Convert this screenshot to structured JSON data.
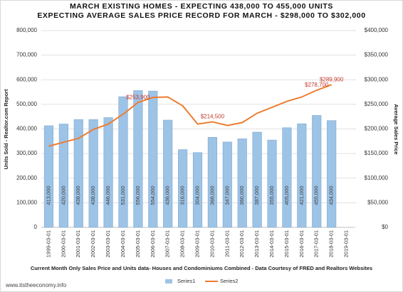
{
  "chart_data": {
    "type": "bar-line",
    "title": "MARCH EXISTING HOMES - EXPECTING 438,000 TO 455,000 UNITS",
    "subtitle": "EXPECTING AVERAGE SALES PRICE RECORD FOR MARCH - $298,000 TO $302,000",
    "y_label": "Units Sold - Realtor.com Report",
    "y2_label": "Average Sales Price",
    "note": "Current Month Only Sales Price and Units data- Houses and Condominiums Combined - Data Courtesy of FRED and Realtors Websites",
    "watermark": "www.itstheeconomy.info",
    "categories": [
      "1999-03-01",
      "2000-03-01",
      "2001-03-01",
      "2002-03-01",
      "2003-03-01",
      "2004-03-01",
      "2005-03-01",
      "2006-03-01",
      "2007-03-01",
      "2008-03-01",
      "2009-03-01",
      "2010-03-01",
      "2011-03-01",
      "2012-03-01",
      "2013-03-01",
      "2014-03-01",
      "2015-03-01",
      "2016-03-01",
      "2017-03-01",
      "2018-03-01",
      "2019-03-01"
    ],
    "series": [
      {
        "name": "Series1",
        "type": "bar",
        "color": "#9dc3e6",
        "values": [
          413000,
          420000,
          438000,
          438000,
          446000,
          531000,
          556000,
          554000,
          436000,
          316000,
          304000,
          366000,
          347000,
          360000,
          387000,
          355000,
          405000,
          421000,
          455000,
          434000,
          null
        ],
        "value_labels": [
          "413,000",
          "420,000",
          "438,000",
          "438,000",
          "446,000",
          "531,000",
          "556,000",
          "554,000",
          "436,000",
          "316,000",
          "304,000",
          "366,000",
          "347,000",
          "360,000",
          "387,000",
          "355,000",
          "405,000",
          "421,000",
          "455,000",
          "434,000",
          null
        ]
      },
      {
        "name": "Series2",
        "type": "line",
        "axis": "y2",
        "color": "#ed7d31",
        "values": [
          165000,
          173000,
          181000,
          199000,
          210000,
          230000,
          253900,
          264000,
          265000,
          247000,
          210000,
          214500,
          207000,
          213000,
          232000,
          244000,
          256000,
          265000,
          278700,
          289900,
          null
        ],
        "value_labels": [
          null,
          null,
          null,
          null,
          null,
          null,
          "$253,900",
          null,
          null,
          null,
          null,
          "$214,500",
          null,
          null,
          null,
          null,
          null,
          null,
          "$278,700",
          "$289,900",
          null
        ]
      }
    ],
    "ylim": [
      0,
      800000
    ],
    "yticks": [
      0,
      {
        "value": 100000,
        "label": "100,000"
      },
      {
        "value": 200000,
        "label": "200,000"
      },
      {
        "value": 300000,
        "label": "300,000"
      },
      {
        "value": 400000,
        "label": "400,000"
      },
      {
        "value": 500000,
        "label": "500,000"
      },
      {
        "value": 600000,
        "label": "600,000"
      },
      {
        "value": 700000,
        "label": "700,000"
      },
      {
        "value": 800000,
        "label": "800,000"
      }
    ],
    "y2lim": [
      0,
      400000
    ],
    "y2ticks": [
      {
        "value": 0,
        "label": "$0"
      },
      {
        "value": 50000,
        "label": "$50,000"
      },
      {
        "value": 100000,
        "label": "$100,000"
      },
      {
        "value": 150000,
        "label": "$150,000"
      },
      {
        "value": 200000,
        "label": "$200,000"
      },
      {
        "value": 250000,
        "label": "$250,000"
      },
      {
        "value": 300000,
        "label": "$300,000"
      },
      {
        "value": 350000,
        "label": "$350,000"
      },
      {
        "value": 400000,
        "label": "$400,000"
      }
    ],
    "grid": true,
    "legend": "bottom"
  }
}
